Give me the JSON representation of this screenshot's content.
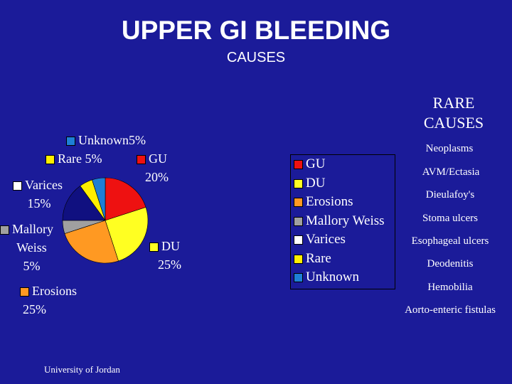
{
  "header": {
    "title": "UPPER GI BLEEDING",
    "subtitle": "CAUSES"
  },
  "chart_data": {
    "type": "pie",
    "slices": [
      {
        "name": "GU",
        "value": 20,
        "label": "20%",
        "color": "#ee1111"
      },
      {
        "name": "DU",
        "value": 25,
        "label": "25%",
        "color": "#ffff22"
      },
      {
        "name": "Erosions",
        "value": 25,
        "label": "25%",
        "color": "#ff9922"
      },
      {
        "name": "Mallory Weiss",
        "value": 5,
        "label": "5%",
        "color": "#a0a0a0"
      },
      {
        "name": "Varices",
        "value": 15,
        "label": "15%",
        "color": "#101080"
      },
      {
        "name": "Rare",
        "value": 5,
        "label": "5%",
        "color": "#ffee00"
      },
      {
        "name": "Unknown",
        "value": 5,
        "label": "5%",
        "color": "#1e7fd6"
      }
    ],
    "slice_labels": {
      "GU": [
        "GU",
        "20%"
      ],
      "DU": [
        "DU",
        "25%"
      ],
      "Erosions": [
        "Erosions",
        "25%"
      ],
      "Mallory Weiss": [
        "Mallory",
        "Weiss",
        "5%"
      ],
      "Varices": [
        "Varices",
        "15%"
      ],
      "Rare": [
        "Rare",
        "5%"
      ],
      "Unknown": [
        "Unknown",
        "5%"
      ]
    },
    "legend": {
      "placement": "right",
      "items": [
        {
          "label": "GU",
          "color": "#ee1111"
        },
        {
          "label": "DU",
          "color": "#ffff22"
        },
        {
          "label": "Erosions",
          "color": "#ff9922"
        },
        {
          "label": "Mallory Weiss",
          "color": "#a0a0a0"
        },
        {
          "label": "Varices",
          "color": "#ffffff"
        },
        {
          "label": "Rare",
          "color": "#ffee00"
        },
        {
          "label": "Unknown",
          "color": "#1e7fd6"
        }
      ]
    }
  },
  "rare_causes": {
    "heading": [
      "RARE",
      "CAUSES"
    ],
    "items": [
      "Neoplasms",
      "AVM/Ectasia",
      "Dieulafoy's",
      "Stoma ulcers",
      "Esophageal ulcers",
      "Deodenitis",
      "Hemobilia",
      "Aorto-enteric fistulas"
    ]
  },
  "footer": "University of Jordan"
}
